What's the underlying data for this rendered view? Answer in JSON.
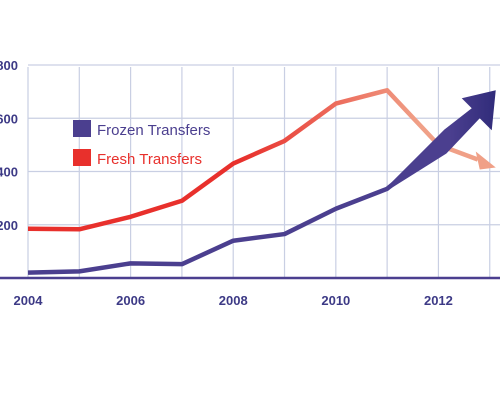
{
  "chart_data": {
    "type": "line",
    "title": "",
    "xlabel": "",
    "ylabel": "",
    "x_ticks": [
      "2004",
      "2006",
      "2008",
      "2010",
      "2012"
    ],
    "y_ticks": [
      "200",
      "400",
      "600",
      "800"
    ],
    "xlim": [
      2004,
      2013.2
    ],
    "ylim": [
      0,
      800
    ],
    "grid": true,
    "legend_position": "upper-left",
    "series": [
      {
        "name": "Frozen Transfers",
        "color": "#4b3f8f",
        "x": [
          2004,
          2005,
          2006,
          2007,
          2008,
          2009,
          2010,
          2011,
          2012,
          2013
        ],
        "values": [
          20,
          25,
          55,
          52,
          140,
          165,
          260,
          335,
          490,
          660
        ]
      },
      {
        "name": "Fresh Transfers",
        "color": "#e8302c",
        "fade_color": "#f0a087",
        "x": [
          2004,
          2005,
          2006,
          2007,
          2008,
          2009,
          2010,
          2011,
          2012,
          2013
        ],
        "values": [
          185,
          183,
          230,
          290,
          430,
          515,
          655,
          705,
          500,
          430
        ]
      }
    ]
  }
}
